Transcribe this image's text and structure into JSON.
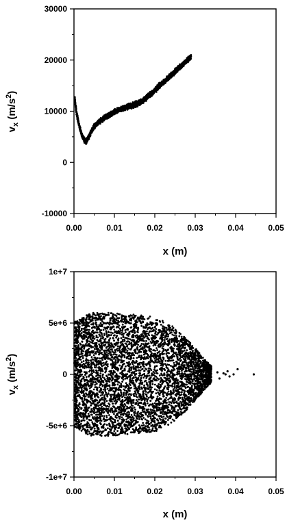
{
  "chart_data": [
    {
      "type": "scatter",
      "xlabel": "x (m)",
      "ylabel": "v_x (m/s^2)",
      "ylabel_parts": {
        "main": "v",
        "sub": "x",
        "units_open": " (m/s",
        "sup": "2",
        "units_close": ")"
      },
      "xlim": [
        0.0,
        0.05
      ],
      "ylim": [
        -10000,
        30000
      ],
      "xticks": [
        0.0,
        0.01,
        0.02,
        0.03,
        0.04,
        0.05
      ],
      "xtick_labels": [
        "0.00",
        "0.01",
        "0.02",
        "0.03",
        "0.04",
        "0.05"
      ],
      "yticks": [
        -10000,
        0,
        10000,
        20000,
        30000
      ],
      "ytick_labels": [
        "-10000",
        "0",
        "10000",
        "20000",
        "30000"
      ],
      "grid": false,
      "series": [
        {
          "marker_color": "#000000",
          "points": [
            [
              0.0002,
              12600
            ],
            [
              0.0005,
              10400
            ],
            [
              0.0008,
              9000
            ],
            [
              0.0012,
              7500
            ],
            [
              0.0016,
              6200
            ],
            [
              0.002,
              5200
            ],
            [
              0.0025,
              4400
            ],
            [
              0.003,
              4100
            ],
            [
              0.0035,
              4700
            ],
            [
              0.004,
              5600
            ],
            [
              0.0045,
              6300
            ],
            [
              0.005,
              7000
            ],
            [
              0.006,
              7800
            ],
            [
              0.007,
              8400
            ],
            [
              0.008,
              8900
            ],
            [
              0.009,
              9400
            ],
            [
              0.01,
              9800
            ],
            [
              0.011,
              10200
            ],
            [
              0.012,
              10500
            ],
            [
              0.013,
              10800
            ],
            [
              0.014,
              11000
            ],
            [
              0.015,
              11300
            ],
            [
              0.016,
              11600
            ],
            [
              0.017,
              12000
            ],
            [
              0.018,
              12700
            ],
            [
              0.019,
              13400
            ],
            [
              0.02,
              14100
            ],
            [
              0.021,
              14900
            ],
            [
              0.022,
              15600
            ],
            [
              0.023,
              16300
            ],
            [
              0.024,
              17000
            ],
            [
              0.025,
              17800
            ],
            [
              0.026,
              18500
            ],
            [
              0.027,
              19200
            ],
            [
              0.028,
              19900
            ],
            [
              0.0285,
              20300
            ],
            [
              0.029,
              20600
            ]
          ]
        }
      ]
    },
    {
      "type": "scatter",
      "xlabel": "x (m)",
      "ylabel": "v_x (m/s^2)",
      "ylabel_parts": {
        "main": "v",
        "sub": "x",
        "units_open": " (m/s",
        "sup": "2",
        "units_close": ")"
      },
      "xlim": [
        0.0,
        0.05
      ],
      "ylim": [
        -10000000,
        10000000
      ],
      "xticks": [
        0.0,
        0.01,
        0.02,
        0.03,
        0.04,
        0.05
      ],
      "xtick_labels": [
        "0.00",
        "0.01",
        "0.02",
        "0.03",
        "0.04",
        "0.05"
      ],
      "yticks": [
        -10000000,
        -5000000,
        0,
        5000000,
        10000000
      ],
      "ytick_labels": [
        "-1e+7",
        "-5e+6",
        "0",
        "5e+6",
        "1e+7"
      ],
      "grid": false,
      "series": [
        {
          "marker_color": "#000000",
          "envelope": {
            "x": [
              0.0001,
              0.004,
              0.008,
              0.012,
              0.016,
              0.02,
              0.024,
              0.027,
              0.03,
              0.032,
              0.034
            ],
            "y_max": [
              5200000,
              6000000,
              6000000,
              5900000,
              5800000,
              5600000,
              4800000,
              3800000,
              2600000,
              1600000,
              800000
            ]
          },
          "outliers": [
            [
              0.0355,
              200000
            ],
            [
              0.036,
              -400000
            ],
            [
              0.037,
              100000
            ],
            [
              0.0375,
              0
            ],
            [
              0.038,
              300000
            ],
            [
              0.0385,
              -200000
            ],
            [
              0.0395,
              0
            ],
            [
              0.0405,
              500000
            ],
            [
              0.0445,
              0
            ]
          ]
        }
      ]
    }
  ]
}
